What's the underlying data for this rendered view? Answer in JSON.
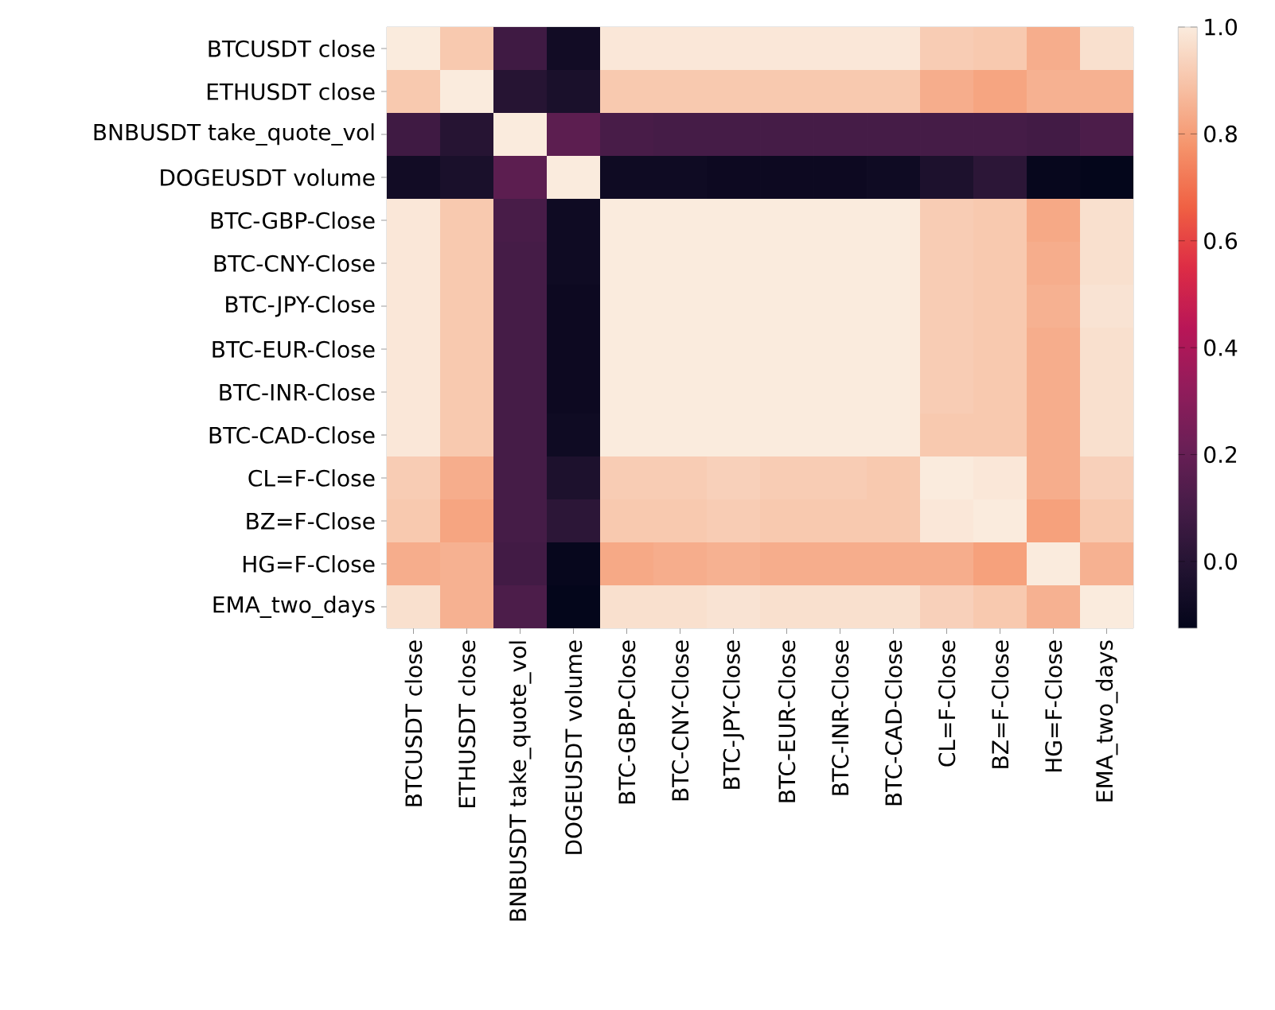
{
  "chart_data": {
    "type": "heatmap",
    "categories": [
      "BTCUSDT close",
      "ETHUSDT close",
      "BNBUSDT take_quote_vol",
      "DOGEUSDT volume",
      "BTC-GBP-Close",
      "BTC-CNY-Close",
      "BTC-JPY-Close",
      "BTC-EUR-Close",
      "BTC-INR-Close",
      "BTC-CAD-Close",
      "CL=F-Close",
      "BZ=F-Close",
      "HG=F-Close",
      "EMA_two_days"
    ],
    "y_categories": [
      "BTCUSDT close",
      "ETHUSDT close",
      "BNBUSDT take_quote_vol",
      "DOGEUSDT volume",
      "BTC-GBP-Close",
      "BTC-CNY-Close",
      "BTC-JPY-Close",
      "BTC-EUR-Close",
      "BTC-INR-Close",
      "BTC-CAD-Close",
      "CL=F-Close",
      "BZ=F-Close",
      "HG=F-Close",
      "EMA_two_days"
    ],
    "cells": [
      [
        1,
        0.91,
        0.08,
        -0.07,
        0.99,
        0.99,
        0.99,
        0.99,
        0.99,
        0.99,
        0.92,
        0.91,
        0.84,
        0.97
      ],
      [
        0.91,
        1,
        0.0,
        -0.04,
        0.91,
        0.91,
        0.91,
        0.91,
        0.91,
        0.91,
        0.84,
        0.82,
        0.85,
        0.85
      ],
      [
        0.08,
        0.0,
        1,
        0.17,
        0.11,
        0.1,
        0.1,
        0.1,
        0.1,
        0.1,
        0.1,
        0.1,
        0.09,
        0.12
      ],
      [
        -0.07,
        -0.04,
        0.17,
        1,
        -0.08,
        -0.08,
        -0.09,
        -0.09,
        -0.09,
        -0.08,
        -0.03,
        0.02,
        -0.11,
        -0.12
      ],
      [
        0.99,
        0.91,
        0.11,
        -0.08,
        1,
        1,
        1,
        1,
        1,
        1,
        0.92,
        0.91,
        0.83,
        0.97
      ],
      [
        0.99,
        0.91,
        0.1,
        -0.08,
        1,
        1,
        1,
        1,
        1,
        1,
        0.92,
        0.91,
        0.84,
        0.97
      ],
      [
        0.99,
        0.91,
        0.1,
        -0.09,
        1,
        1,
        1,
        1,
        1,
        1,
        0.92,
        0.91,
        0.85,
        0.98
      ],
      [
        0.99,
        0.91,
        0.1,
        -0.09,
        1,
        1,
        1,
        1,
        1,
        1,
        0.92,
        0.91,
        0.84,
        0.97
      ],
      [
        0.99,
        0.91,
        0.1,
        -0.09,
        1,
        1,
        1,
        1,
        1,
        1,
        0.92,
        0.91,
        0.84,
        0.97
      ],
      [
        0.99,
        0.91,
        0.1,
        -0.08,
        1,
        1,
        1,
        1,
        1,
        1,
        0.91,
        0.91,
        0.84,
        0.97
      ],
      [
        0.92,
        0.84,
        0.1,
        -0.03,
        0.92,
        0.92,
        0.93,
        0.92,
        0.92,
        0.91,
        1,
        0.99,
        0.84,
        0.93
      ],
      [
        0.91,
        0.82,
        0.1,
        0.02,
        0.91,
        0.91,
        0.92,
        0.91,
        0.91,
        0.91,
        0.99,
        1,
        0.81,
        0.91
      ],
      [
        0.84,
        0.85,
        0.09,
        -0.11,
        0.83,
        0.84,
        0.85,
        0.84,
        0.84,
        0.84,
        0.84,
        0.81,
        1,
        0.85
      ],
      [
        0.97,
        0.85,
        0.12,
        -0.12,
        0.97,
        0.97,
        0.98,
        0.97,
        0.97,
        0.97,
        0.93,
        0.91,
        0.85,
        1
      ]
    ],
    "clim": [
      -0.125,
      1.0
    ],
    "cticks": [
      {
        "value": 0.0,
        "label": "0.0"
      },
      {
        "value": 0.2,
        "label": "0.2"
      },
      {
        "value": 0.4,
        "label": "0.4"
      },
      {
        "value": 0.6,
        "label": "0.6"
      },
      {
        "value": 0.8,
        "label": "0.8"
      },
      {
        "value": 1.0,
        "label": "1.0"
      }
    ]
  }
}
